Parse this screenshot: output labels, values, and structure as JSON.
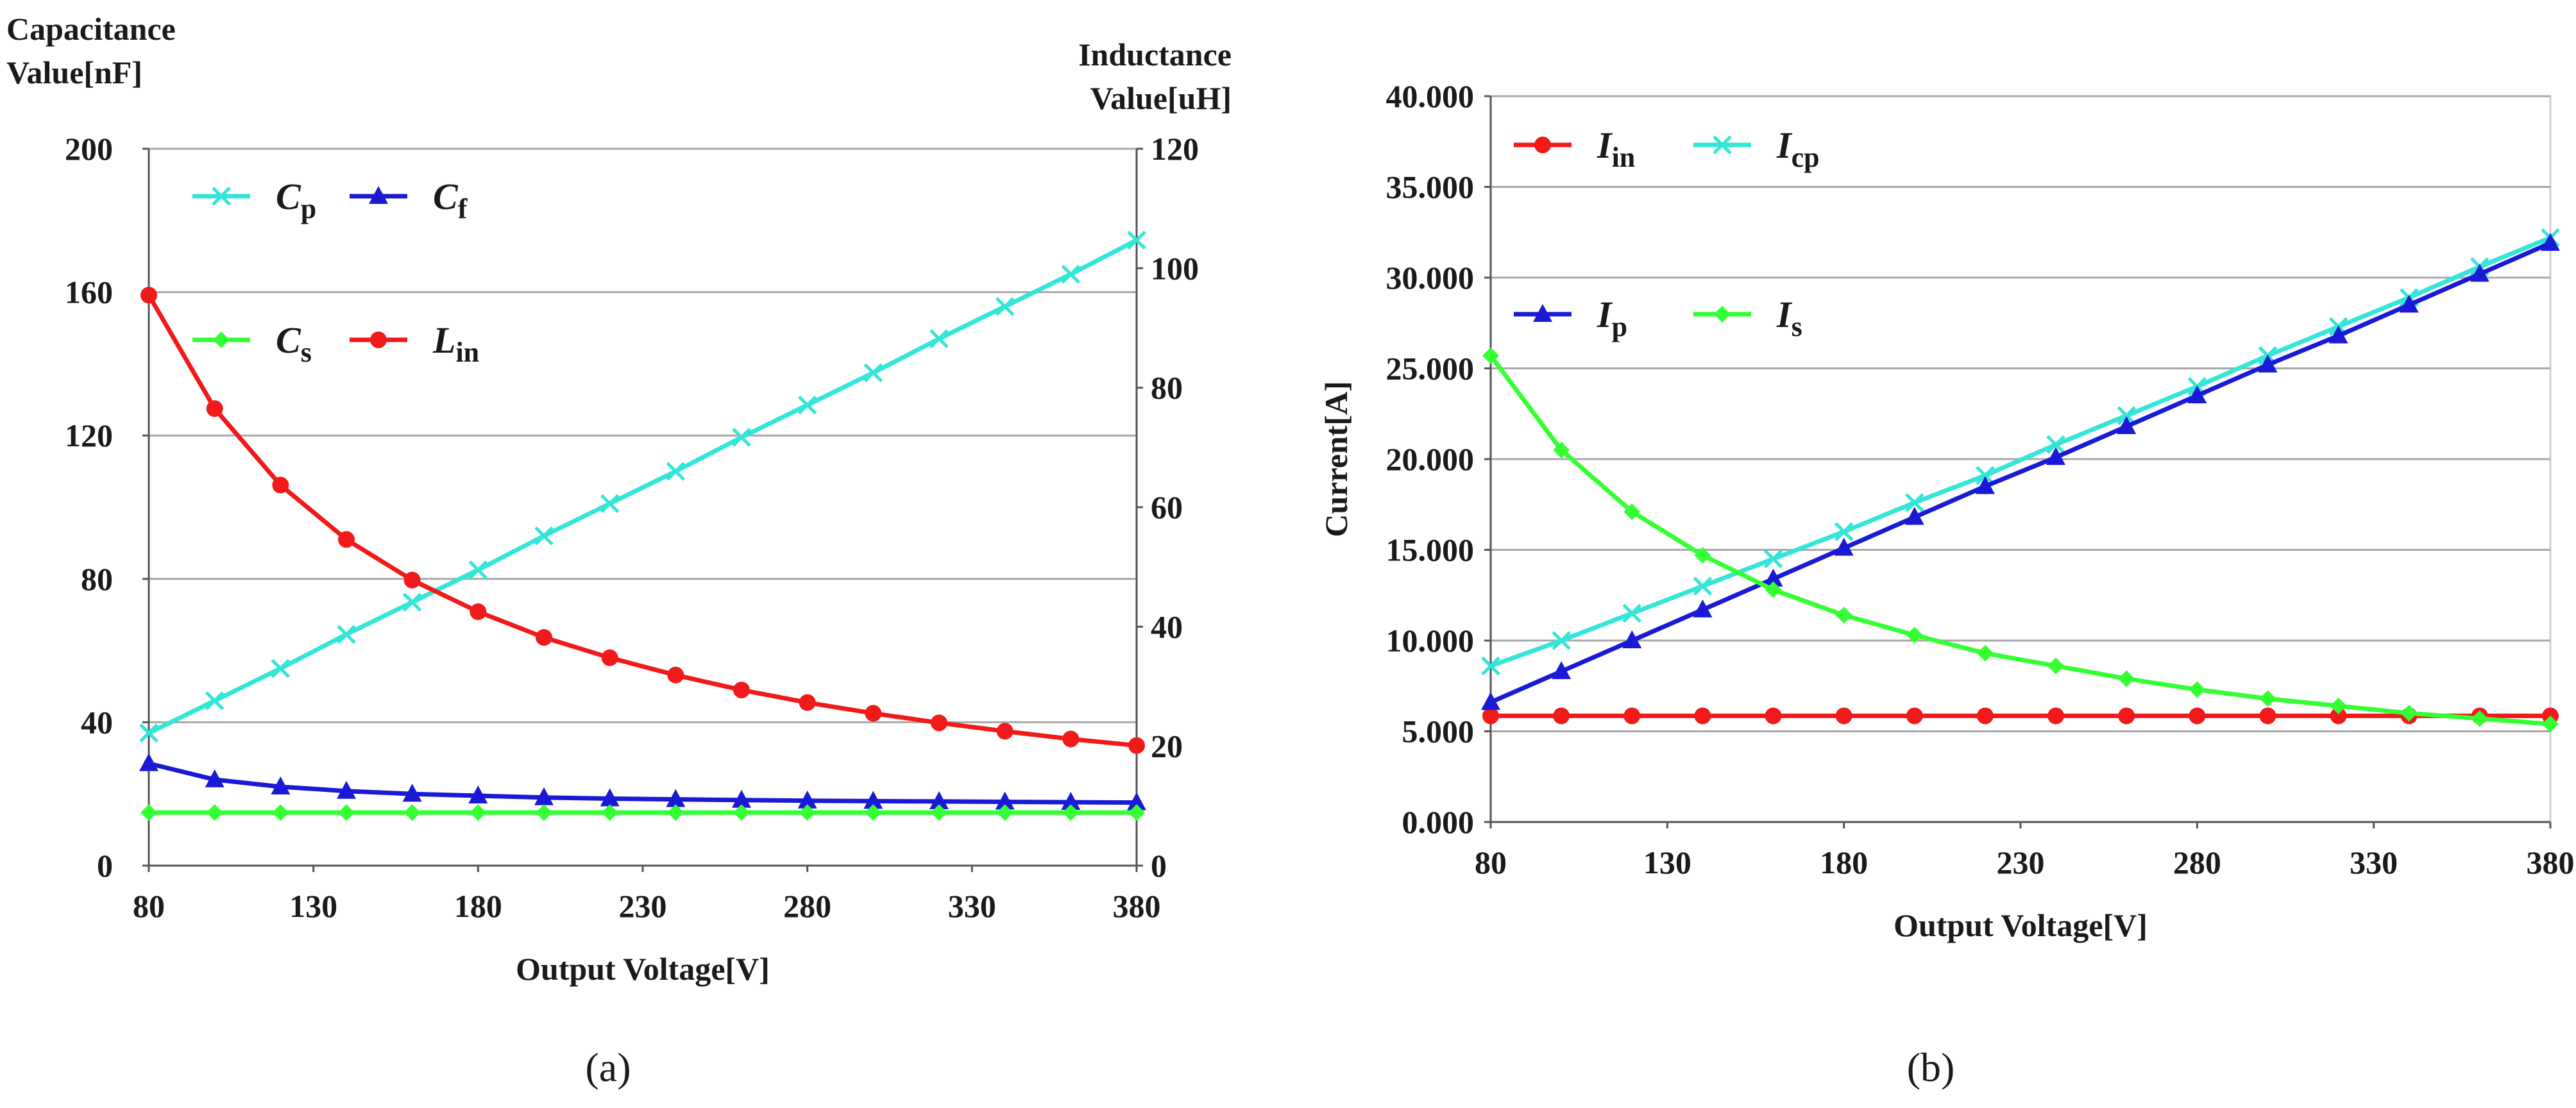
{
  "chart_data": [
    {
      "id": "a",
      "type": "line",
      "caption": "(a)",
      "xlabel": "Output Voltage[V]",
      "ylabel_left": [
        "Capacitance",
        "Value[nF]"
      ],
      "ylabel_right": [
        "Inductance",
        "Value[uH]"
      ],
      "x_ticks": [
        "80",
        "130",
        "180",
        "230",
        "280",
        "330",
        "380"
      ],
      "y_ticks_left": [
        "0",
        "40",
        "80",
        "120",
        "160",
        "200"
      ],
      "y_ticks_right": [
        "0",
        "20",
        "40",
        "60",
        "80",
        "100",
        "120"
      ],
      "xlim": [
        80,
        380
      ],
      "ylim_left": [
        0,
        200
      ],
      "ylim_right": [
        0,
        120
      ],
      "grid": "horizontal",
      "x": [
        80,
        100,
        120,
        140,
        160,
        180,
        200,
        220,
        240,
        260,
        280,
        300,
        320,
        340,
        360,
        380
      ],
      "series": [
        {
          "name": "C",
          "sub": "p",
          "axis": "left",
          "color": "#33e6d8",
          "marker": "x",
          "values": [
            37,
            46,
            55,
            64.5,
            73.5,
            82.5,
            92,
            101,
            110,
            119.5,
            128.5,
            137.5,
            147,
            156,
            165,
            174.5
          ]
        },
        {
          "name": "C",
          "sub": "f",
          "axis": "left",
          "color": "#1a1ad6",
          "marker": "triangle",
          "values": [
            28.5,
            24,
            22,
            20.8,
            20,
            19.5,
            19,
            18.7,
            18.5,
            18.3,
            18.1,
            18,
            17.9,
            17.8,
            17.7,
            17.6
          ]
        },
        {
          "name": "C",
          "sub": "s",
          "axis": "left",
          "color": "#33ff33",
          "marker": "diamond",
          "values": [
            14.8,
            14.8,
            14.8,
            14.8,
            14.8,
            14.8,
            14.8,
            14.8,
            14.8,
            14.8,
            14.8,
            14.8,
            14.8,
            14.8,
            14.8,
            14.8
          ]
        },
        {
          "name": "L",
          "sub": "in",
          "axis": "right",
          "color": "#f01a1a",
          "marker": "circle",
          "values": [
            95.5,
            76.5,
            63.7,
            54.6,
            47.8,
            42.5,
            38.2,
            34.8,
            31.9,
            29.4,
            27.3,
            25.5,
            23.9,
            22.5,
            21.2,
            20.1
          ]
        }
      ],
      "legend": [
        {
          "series": 0,
          "row": 0,
          "col": 0
        },
        {
          "series": 1,
          "row": 0,
          "col": 1
        },
        {
          "series": 2,
          "row": 1,
          "col": 0
        },
        {
          "series": 3,
          "row": 1,
          "col": 1
        }
      ]
    },
    {
      "id": "b",
      "type": "line",
      "caption": "(b)",
      "xlabel": "Output Voltage[V]",
      "ylabel": "Current[A]",
      "x_ticks": [
        "80",
        "130",
        "180",
        "230",
        "280",
        "330",
        "380"
      ],
      "y_ticks": [
        "0.000",
        "5.000",
        "10.000",
        "15.000",
        "20.000",
        "25.000",
        "30.000",
        "35.000",
        "40.000"
      ],
      "xlim": [
        80,
        380
      ],
      "ylim": [
        0,
        40
      ],
      "grid": "horizontal",
      "x": [
        80,
        100,
        120,
        140,
        160,
        180,
        200,
        220,
        240,
        260,
        280,
        300,
        320,
        340,
        360,
        380
      ],
      "series": [
        {
          "name": "I",
          "sub": "in",
          "color": "#f01a1a",
          "marker": "circle",
          "values": [
            5.85,
            5.85,
            5.85,
            5.85,
            5.85,
            5.85,
            5.85,
            5.85,
            5.85,
            5.85,
            5.85,
            5.85,
            5.85,
            5.85,
            5.85,
            5.85
          ]
        },
        {
          "name": "I",
          "sub": "cp",
          "color": "#33e6d8",
          "marker": "x",
          "values": [
            8.6,
            10.0,
            11.5,
            13.0,
            14.5,
            16.0,
            17.6,
            19.1,
            20.8,
            22.4,
            24.0,
            25.7,
            27.3,
            28.9,
            30.6,
            32.2
          ]
        },
        {
          "name": "I",
          "sub": "p",
          "color": "#1a1ad6",
          "marker": "triangle",
          "values": [
            6.6,
            8.3,
            10.0,
            11.7,
            13.4,
            15.1,
            16.8,
            18.5,
            20.1,
            21.8,
            23.5,
            25.2,
            26.8,
            28.5,
            30.2,
            31.9
          ]
        },
        {
          "name": "I",
          "sub": "s",
          "color": "#33ff33",
          "marker": "diamond",
          "values": [
            25.7,
            20.5,
            17.1,
            14.7,
            12.8,
            11.4,
            10.3,
            9.3,
            8.6,
            7.9,
            7.3,
            6.8,
            6.4,
            6.0,
            5.7,
            5.4
          ]
        }
      ],
      "legend": [
        {
          "series": 0,
          "row": 0,
          "col": 0
        },
        {
          "series": 1,
          "row": 0,
          "col": 1
        },
        {
          "series": 2,
          "row": 1,
          "col": 0
        },
        {
          "series": 3,
          "row": 1,
          "col": 1
        }
      ]
    }
  ]
}
